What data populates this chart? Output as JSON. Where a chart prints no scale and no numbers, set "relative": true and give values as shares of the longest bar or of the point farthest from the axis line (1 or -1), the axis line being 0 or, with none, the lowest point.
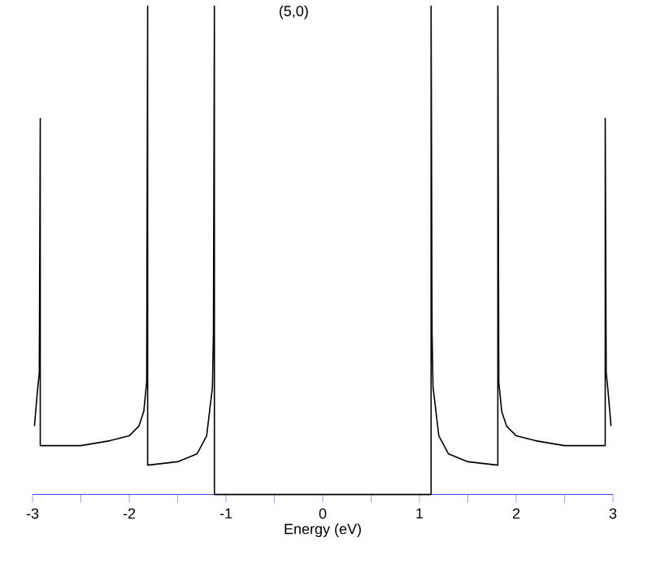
{
  "chart_data": {
    "type": "line",
    "title": "(5,0)",
    "xlabel": "Energy (eV)",
    "relative": true,
    "xlim": [
      -3,
      3
    ],
    "xticks": [
      -3,
      {
        "value": -2.5,
        "label": null
      },
      -2,
      {
        "value": -1.5,
        "label": null
      },
      -1,
      {
        "value": -0.5,
        "label": null
      },
      0,
      {
        "value": 0.5,
        "label": null
      },
      1,
      {
        "value": 1.5,
        "label": null
      },
      2,
      {
        "value": 2.5,
        "label": null
      },
      3
    ],
    "series": [
      {
        "color": "#000000",
        "x": [
          -2.98,
          -2.95,
          -2.93,
          -2.92,
          -2.92,
          -2.8,
          -2.5,
          -2.2,
          -2.0,
          -1.9,
          -1.85,
          -1.82,
          -1.81,
          -1.81,
          -1.5,
          -1.3,
          -1.2,
          -1.14,
          -1.13,
          -1.12,
          -1.12,
          1.12,
          1.12,
          1.13,
          1.14,
          1.2,
          1.3,
          1.5,
          1.81,
          1.81,
          1.82,
          1.85,
          1.9,
          2.0,
          2.2,
          2.5,
          2.8,
          2.92,
          2.92,
          2.93,
          2.95,
          2.98
        ],
        "values": [
          0.14,
          0.21,
          0.25,
          0.77,
          0.1,
          0.1,
          0.1,
          0.11,
          0.12,
          0.14,
          0.17,
          0.23,
          1,
          0.06,
          0.067,
          0.083,
          0.12,
          0.22,
          0.33,
          1,
          0,
          0,
          1,
          0.33,
          0.22,
          0.12,
          0.083,
          0.067,
          0.06,
          1,
          0.23,
          0.17,
          0.14,
          0.12,
          0.11,
          0.1,
          0.1,
          0.1,
          0.77,
          0.25,
          0.21,
          0.14
        ]
      }
    ]
  }
}
